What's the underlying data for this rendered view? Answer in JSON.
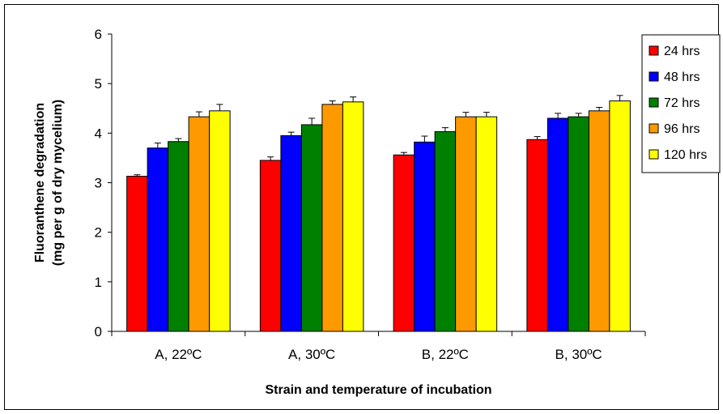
{
  "chart_data": {
    "type": "bar",
    "categories": [
      "A, 22ºC",
      "A, 30ºC",
      "B, 22ºC",
      "B, 30ºC"
    ],
    "series": [
      {
        "name": "24 hrs",
        "color": "#ff0000",
        "values": [
          3.13,
          3.45,
          3.56,
          3.87
        ],
        "errors": [
          0.03,
          0.07,
          0.05,
          0.06
        ]
      },
      {
        "name": "48 hrs",
        "color": "#0000ff",
        "values": [
          3.7,
          3.95,
          3.82,
          4.3
        ],
        "errors": [
          0.1,
          0.07,
          0.12,
          0.1
        ]
      },
      {
        "name": "72 hrs",
        "color": "#008000",
        "values": [
          3.83,
          4.17,
          4.03,
          4.33
        ],
        "errors": [
          0.06,
          0.13,
          0.08,
          0.07
        ]
      },
      {
        "name": "96 hrs",
        "color": "#ff9900",
        "values": [
          4.33,
          4.58,
          4.33,
          4.45
        ],
        "errors": [
          0.1,
          0.07,
          0.09,
          0.07
        ]
      },
      {
        "name": "120 hrs",
        "color": "#ffff00",
        "values": [
          4.45,
          4.63,
          4.33,
          4.65
        ],
        "errors": [
          0.13,
          0.1,
          0.09,
          0.11
        ]
      }
    ],
    "xlabel": "Strain and temperature of incubation",
    "ylabel_line1": "Fluoranthene degradation",
    "ylabel_line2": "(mg per g of dry mycelium)",
    "ylim": [
      0,
      6
    ],
    "yticks": [
      0,
      1,
      2,
      3,
      4,
      5,
      6
    ],
    "grid": false,
    "legend_position": "right"
  }
}
